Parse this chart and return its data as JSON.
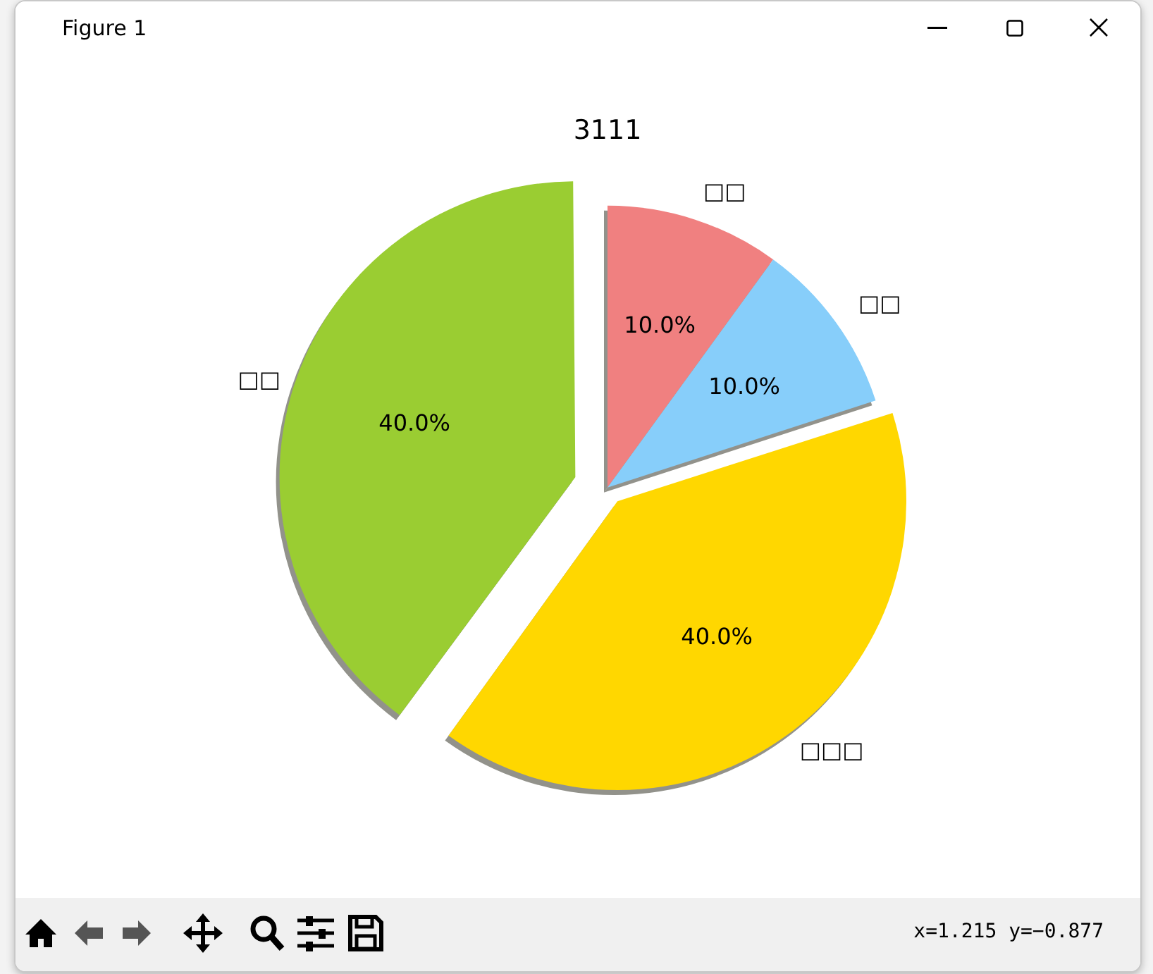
{
  "chart_data": {
    "type": "pie",
    "title": "3111",
    "categories": [
      "□□",
      "□□",
      "□□□",
      "□□"
    ],
    "values": [
      10,
      10,
      40,
      40
    ],
    "colors": [
      "#f08080",
      "#87cefa",
      "#ffd700",
      "#9acd32"
    ],
    "value_labels": [
      "10.0%",
      "10.0%",
      "40.0%",
      "40.0%"
    ],
    "legend": false,
    "annotations": [
      "Figure 1",
      "x=1.215 y=−0.877"
    ]
  }
}
